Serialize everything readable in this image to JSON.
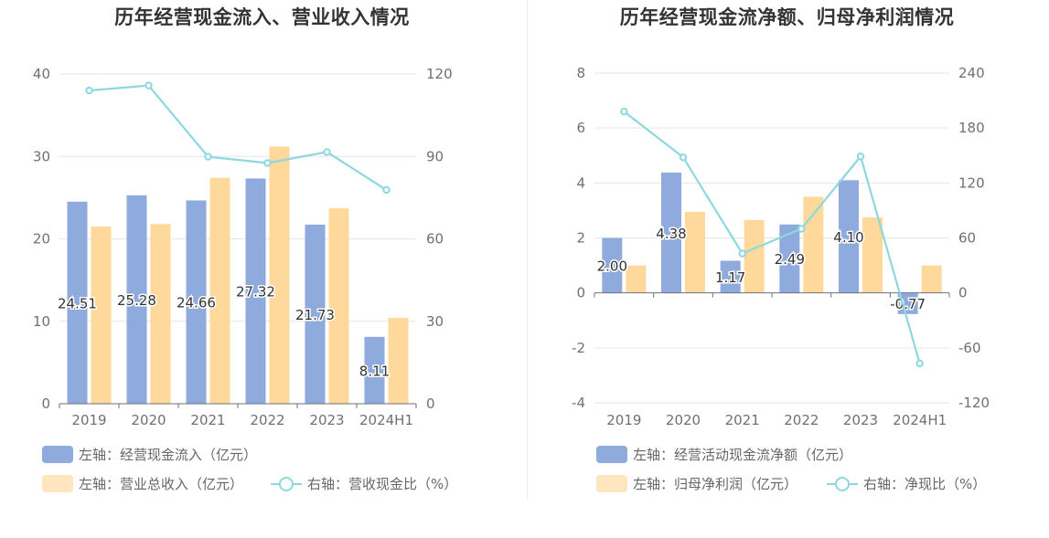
{
  "chart_data": [
    {
      "type": "bar",
      "title": "历年经营现金流入、营业收入情况",
      "categories": [
        "2019",
        "2020",
        "2021",
        "2022",
        "2023",
        "2024H1"
      ],
      "left_axis": {
        "ticks": [
          "0",
          "10",
          "20",
          "30",
          "40"
        ],
        "ylim": [
          0,
          40
        ]
      },
      "right_axis": {
        "ticks": [
          "0",
          "30",
          "60",
          "90",
          "120"
        ],
        "ylim": [
          0,
          120
        ]
      },
      "series": [
        {
          "name": "左轴：经营现金流入（亿元）",
          "axis": "left",
          "type": "bar",
          "color": "#8faadc",
          "values": [
            24.51,
            25.28,
            24.66,
            27.32,
            21.73,
            8.11
          ],
          "labels": [
            "24.51",
            "25.28",
            "24.66",
            "27.32",
            "21.73",
            "8.11"
          ]
        },
        {
          "name": "左轴：营业总收入（亿元）",
          "axis": "left",
          "type": "bar",
          "color": "#ffd99b",
          "values": [
            21.5,
            21.8,
            27.4,
            31.2,
            23.7,
            10.4
          ]
        },
        {
          "name": "右轴：营收现金比（%）",
          "axis": "right",
          "type": "line",
          "color": "#8dd8de",
          "values": [
            114,
            115.8,
            89.9,
            87.6,
            91.6,
            77.8
          ]
        }
      ],
      "grid": true,
      "legend_position": "bottom"
    },
    {
      "type": "bar",
      "title": "历年经营现金流净额、归母净利润情况",
      "categories": [
        "2019",
        "2020",
        "2021",
        "2022",
        "2023",
        "2024H1"
      ],
      "left_axis": {
        "ticks": [
          "-4",
          "-2",
          "0",
          "2",
          "4",
          "6",
          "8"
        ],
        "ylim": [
          -4,
          8
        ]
      },
      "right_axis": {
        "ticks": [
          "-120",
          "-60",
          "0",
          "60",
          "120",
          "180",
          "240"
        ],
        "ylim": [
          -120,
          240
        ]
      },
      "series": [
        {
          "name": "左轴：经营活动现金流净额（亿元）",
          "axis": "left",
          "type": "bar",
          "color": "#8faadc",
          "values": [
            2.0,
            4.38,
            1.17,
            2.49,
            4.1,
            -0.77
          ],
          "labels": [
            "2.00",
            "4.38",
            "1.17",
            "2.49",
            "4.10",
            "-0.77"
          ]
        },
        {
          "name": "左轴：归母净利润（亿元）",
          "axis": "left",
          "type": "bar",
          "color": "#ffd99b",
          "values": [
            1.0,
            2.95,
            2.65,
            3.5,
            2.75,
            1.0
          ]
        },
        {
          "name": "右轴：净现比（%）",
          "axis": "right",
          "type": "line",
          "color": "#8dd8de",
          "values": [
            198,
            148,
            43,
            70,
            149,
            -77
          ]
        }
      ],
      "grid": true,
      "legend_position": "bottom"
    }
  ]
}
